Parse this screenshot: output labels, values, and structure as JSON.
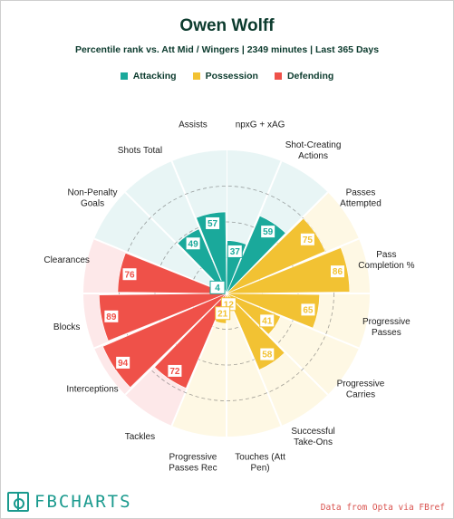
{
  "title": "Owen Wolff",
  "subtitle": "Percentile rank vs. Att Mid / Wingers | 2349 minutes | Last 365 Days",
  "legend": [
    {
      "label": "Attacking",
      "color": "#1aa99b"
    },
    {
      "label": "Possession",
      "color": "#f2c233"
    },
    {
      "label": "Defending",
      "color": "#ef5149"
    }
  ],
  "brand": "FBCHARTS",
  "credit": "Data from Opta via FBref",
  "chart_data": {
    "type": "radar-bar",
    "range": [
      0,
      100
    ],
    "categories": [
      {
        "label": "npxG + xAG",
        "value": 37,
        "group": "Attacking"
      },
      {
        "label": "Shot-Creating Actions",
        "value": 59,
        "group": "Attacking"
      },
      {
        "label": "Passes Attempted",
        "value": 75,
        "group": "Possession"
      },
      {
        "label": "Pass Completion %",
        "value": 86,
        "group": "Possession"
      },
      {
        "label": "Progressive Passes",
        "value": 65,
        "group": "Possession"
      },
      {
        "label": "Progressive Carries",
        "value": 41,
        "group": "Possession"
      },
      {
        "label": "Successful Take-Ons",
        "value": 58,
        "group": "Possession"
      },
      {
        "label": "Touches (Att Pen)",
        "value": 12,
        "group": "Possession"
      },
      {
        "label": "Progressive Passes Rec",
        "value": 21,
        "group": "Possession"
      },
      {
        "label": "Tackles",
        "value": 72,
        "group": "Defending"
      },
      {
        "label": "Interceptions",
        "value": 94,
        "group": "Defending"
      },
      {
        "label": "Blocks",
        "value": 89,
        "group": "Defending"
      },
      {
        "label": "Clearances",
        "value": 76,
        "group": "Defending"
      },
      {
        "label": "Non-Penalty Goals",
        "value": 4,
        "group": "Attacking"
      },
      {
        "label": "Shots Total",
        "value": 49,
        "group": "Attacking"
      },
      {
        "label": "Assists",
        "value": 57,
        "group": "Attacking"
      }
    ]
  }
}
